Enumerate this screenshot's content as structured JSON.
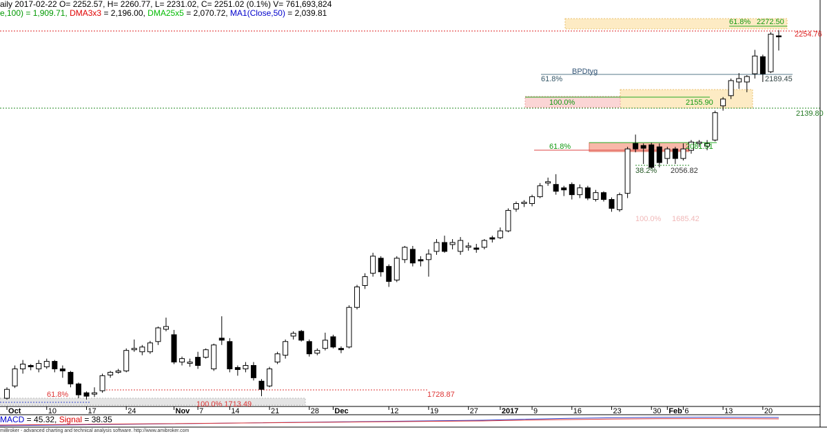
{
  "chart_data": {
    "type": "candlestick",
    "header": [
      [
        {
          "text": "aily 2017-02-22 O= 2252.57, H= 2260.77, L= 2231.02, C= 2251.02 (0.1%) V= 761,693,824",
          "color": "#000000"
        }
      ],
      [
        {
          "text": "e,100) = 1,909.71, ",
          "color": "#009900"
        },
        {
          "text": "DMA3x3",
          "color": "#e00000"
        },
        {
          "text": " = 2,196.00, ",
          "color": "#000000"
        },
        {
          "text": "DMA25x5",
          "color": "#00bb00"
        },
        {
          "text": " = 2,070.72, ",
          "color": "#000000"
        },
        {
          "text": "MA1(Close,50)",
          "color": "#0000cc"
        },
        {
          "text": " = 2,039.81",
          "color": "#000000"
        }
      ]
    ],
    "open": [
      1722,
      1740,
      1765,
      1770,
      1765,
      1768,
      1776,
      1765,
      1760,
      1743,
      1730,
      1728,
      1733,
      1756,
      1760,
      1762,
      1793,
      1790,
      1790,
      1805,
      1823,
      1815,
      1775,
      1773,
      1782,
      1782,
      1765,
      1810,
      1805,
      1767,
      1765,
      1770,
      1747,
      1740,
      1775,
      1785,
      1813,
      1820,
      1805,
      1788,
      1795,
      1812,
      1795,
      1797,
      1855,
      1887,
      1905,
      1927,
      1915,
      1895,
      1925,
      1940,
      1925,
      1925,
      1937,
      1950,
      1947,
      1937,
      1943,
      1942,
      1943,
      1957,
      1957,
      1967,
      1999,
      2007,
      2007,
      2017,
      2037,
      2035,
      2030,
      2035,
      2020,
      2030,
      2013,
      2023,
      2013,
      1998,
      2022,
      2095,
      2092,
      2093,
      2090,
      2073,
      2087,
      2073,
      2085,
      2095,
      2091,
      2100,
      2150,
      2165,
      2185,
      2185,
      2197,
      2222,
      2200,
      2252.57
    ],
    "high": [
      1738,
      1770,
      1778,
      1772,
      1778,
      1780,
      1778,
      1770,
      1762,
      1745,
      1732,
      1738,
      1758,
      1762,
      1765,
      1795,
      1808,
      1800,
      1806,
      1827,
      1840,
      1822,
      1783,
      1780,
      1790,
      1795,
      1802,
      1842,
      1810,
      1770,
      1775,
      1775,
      1750,
      1768,
      1790,
      1808,
      1820,
      1822,
      1808,
      1795,
      1818,
      1815,
      1798,
      1858,
      1888,
      1905,
      1935,
      1930,
      1918,
      1930,
      1945,
      1945,
      1930,
      1940,
      1955,
      1960,
      1955,
      1958,
      1950,
      1948,
      1955,
      1960,
      1972,
      2000,
      2010,
      2012,
      2020,
      2037,
      2045,
      2050,
      2033,
      2038,
      2035,
      2033,
      2027,
      2025,
      2016,
      2023,
      2090,
      2108,
      2095,
      2096,
      2095,
      2090,
      2090,
      2095,
      2100,
      2100,
      2100,
      2143,
      2163,
      2190,
      2198,
      2195,
      2232,
      2225,
      2258,
      2260.77
    ],
    "low": [
      1720,
      1737,
      1758,
      1763,
      1760,
      1765,
      1760,
      1752,
      1738,
      1722,
      1720,
      1724,
      1730,
      1752,
      1758,
      1760,
      1790,
      1785,
      1787,
      1800,
      1820,
      1772,
      1770,
      1768,
      1765,
      1780,
      1762,
      1800,
      1760,
      1755,
      1760,
      1748,
      1725,
      1738,
      1772,
      1780,
      1808,
      1805,
      1783,
      1785,
      1792,
      1795,
      1788,
      1795,
      1852,
      1882,
      1900,
      1900,
      1885,
      1892,
      1920,
      1915,
      1915,
      1900,
      1932,
      1935,
      1940,
      1932,
      1938,
      1935,
      1940,
      1950,
      1955,
      1965,
      1995,
      2002,
      2003,
      2015,
      2033,
      2020,
      2018,
      2013,
      2015,
      2012,
      2010,
      2010,
      1995,
      1995,
      2015,
      2082,
      2065,
      2058,
      2060,
      2065,
      2065,
      2070,
      2080,
      2090,
      2085,
      2098,
      2143,
      2160,
      2175,
      2170,
      2190,
      2185,
      2198,
      2231.02
    ],
    "close": [
      1735,
      1765,
      1772,
      1768,
      1773,
      1776,
      1765,
      1762,
      1743,
      1727,
      1725,
      1730,
      1755,
      1760,
      1762,
      1792,
      1795,
      1797,
      1803,
      1825,
      1827,
      1775,
      1780,
      1775,
      1770,
      1793,
      1800,
      1807,
      1765,
      1764,
      1770,
      1752,
      1735,
      1765,
      1787,
      1805,
      1817,
      1807,
      1787,
      1792,
      1807,
      1797,
      1793,
      1855,
      1885,
      1900,
      1930,
      1907,
      1893,
      1927,
      1943,
      1920,
      1923,
      1933,
      1950,
      1937,
      1950,
      1953,
      1945,
      1940,
      1953,
      1955,
      1967,
      1997,
      2007,
      2009,
      2017,
      2033,
      2039,
      2025,
      2027,
      2020,
      2030,
      2015,
      2023,
      2013,
      2000,
      2020,
      2087,
      2087,
      2088,
      2060,
      2067,
      2087,
      2073,
      2087,
      2097,
      2097,
      2095,
      2140,
      2160,
      2187,
      2190,
      2193,
      2223,
      2197,
      2255,
      2251.02
    ],
    "up_color": "#ffffff",
    "down_color": "#000000",
    "xlim": [
      -0.87,
      102.2
    ],
    "ylim": [
      1710,
      2305
    ],
    "xticks": [
      {
        "value": 0,
        "label": "Oct"
      },
      {
        "value": 5,
        "label": "10"
      },
      {
        "value": 10,
        "label": "17"
      },
      {
        "value": 15,
        "label": "24"
      },
      {
        "value": 21,
        "label": "Nov"
      },
      {
        "value": 24,
        "label": "7"
      },
      {
        "value": 28,
        "label": "14"
      },
      {
        "value": 33,
        "label": "21"
      },
      {
        "value": 38,
        "label": "28"
      },
      {
        "value": 41,
        "label": "Dec"
      },
      {
        "value": 48,
        "label": "12"
      },
      {
        "value": 53,
        "label": "19"
      },
      {
        "value": 58,
        "label": "27"
      },
      {
        "value": 62,
        "label": "2017"
      },
      {
        "value": 66,
        "label": "9"
      },
      {
        "value": 71,
        "label": "16"
      },
      {
        "value": 76,
        "label": "23"
      },
      {
        "value": 81,
        "label": "30"
      },
      {
        "value": 83,
        "label": "Feb"
      },
      {
        "value": 85,
        "label": "6"
      },
      {
        "value": 90,
        "label": "13"
      },
      {
        "value": 95,
        "label": "20"
      }
    ],
    "grid": false,
    "annotations": [
      {
        "text": "61.8%",
        "color": "#119911"
      },
      {
        "text": "2272.50",
        "color": "#119911"
      },
      {
        "text": "2254.76",
        "color": "#dd2222"
      },
      {
        "text": "BPDtyg",
        "color": "#335577"
      },
      {
        "text": "61.8%",
        "color": "#335566"
      },
      {
        "text": "2189.45",
        "color": "#334444"
      },
      {
        "text": "100.0%",
        "color": "#119911"
      },
      {
        "text": "2155.90",
        "color": "#119911"
      },
      {
        "text": "2139.80",
        "color": "#227722"
      },
      {
        "text": "61.8%",
        "color": "#119911"
      },
      {
        "text": "2081.51",
        "color": "#119911"
      },
      {
        "text": "38.2%",
        "color": "#225522"
      },
      {
        "text": "2056.82",
        "color": "#333333"
      },
      {
        "text": "100.0%",
        "color": "#f0b8b8"
      },
      {
        "text": "1685.42",
        "color": "#f0b8b8"
      },
      {
        "text": "61.8%",
        "color": "#dd3333"
      },
      {
        "text": "1728.87",
        "color": "#dd3333"
      },
      {
        "text": "100.0% 1713.49",
        "color": "#dd3333"
      }
    ],
    "macd_label": [
      {
        "text": "MACD",
        "color": "#0000cc"
      },
      {
        "text": " = 45.32, ",
        "color": "#000000"
      },
      {
        "text": "Signal",
        "color": "#dd0000"
      },
      {
        "text": " = 38.35",
        "color": "#000000"
      }
    ],
    "footer": "miBroker - advanced charting and technical analysis software. http://www.amibroker.com"
  }
}
